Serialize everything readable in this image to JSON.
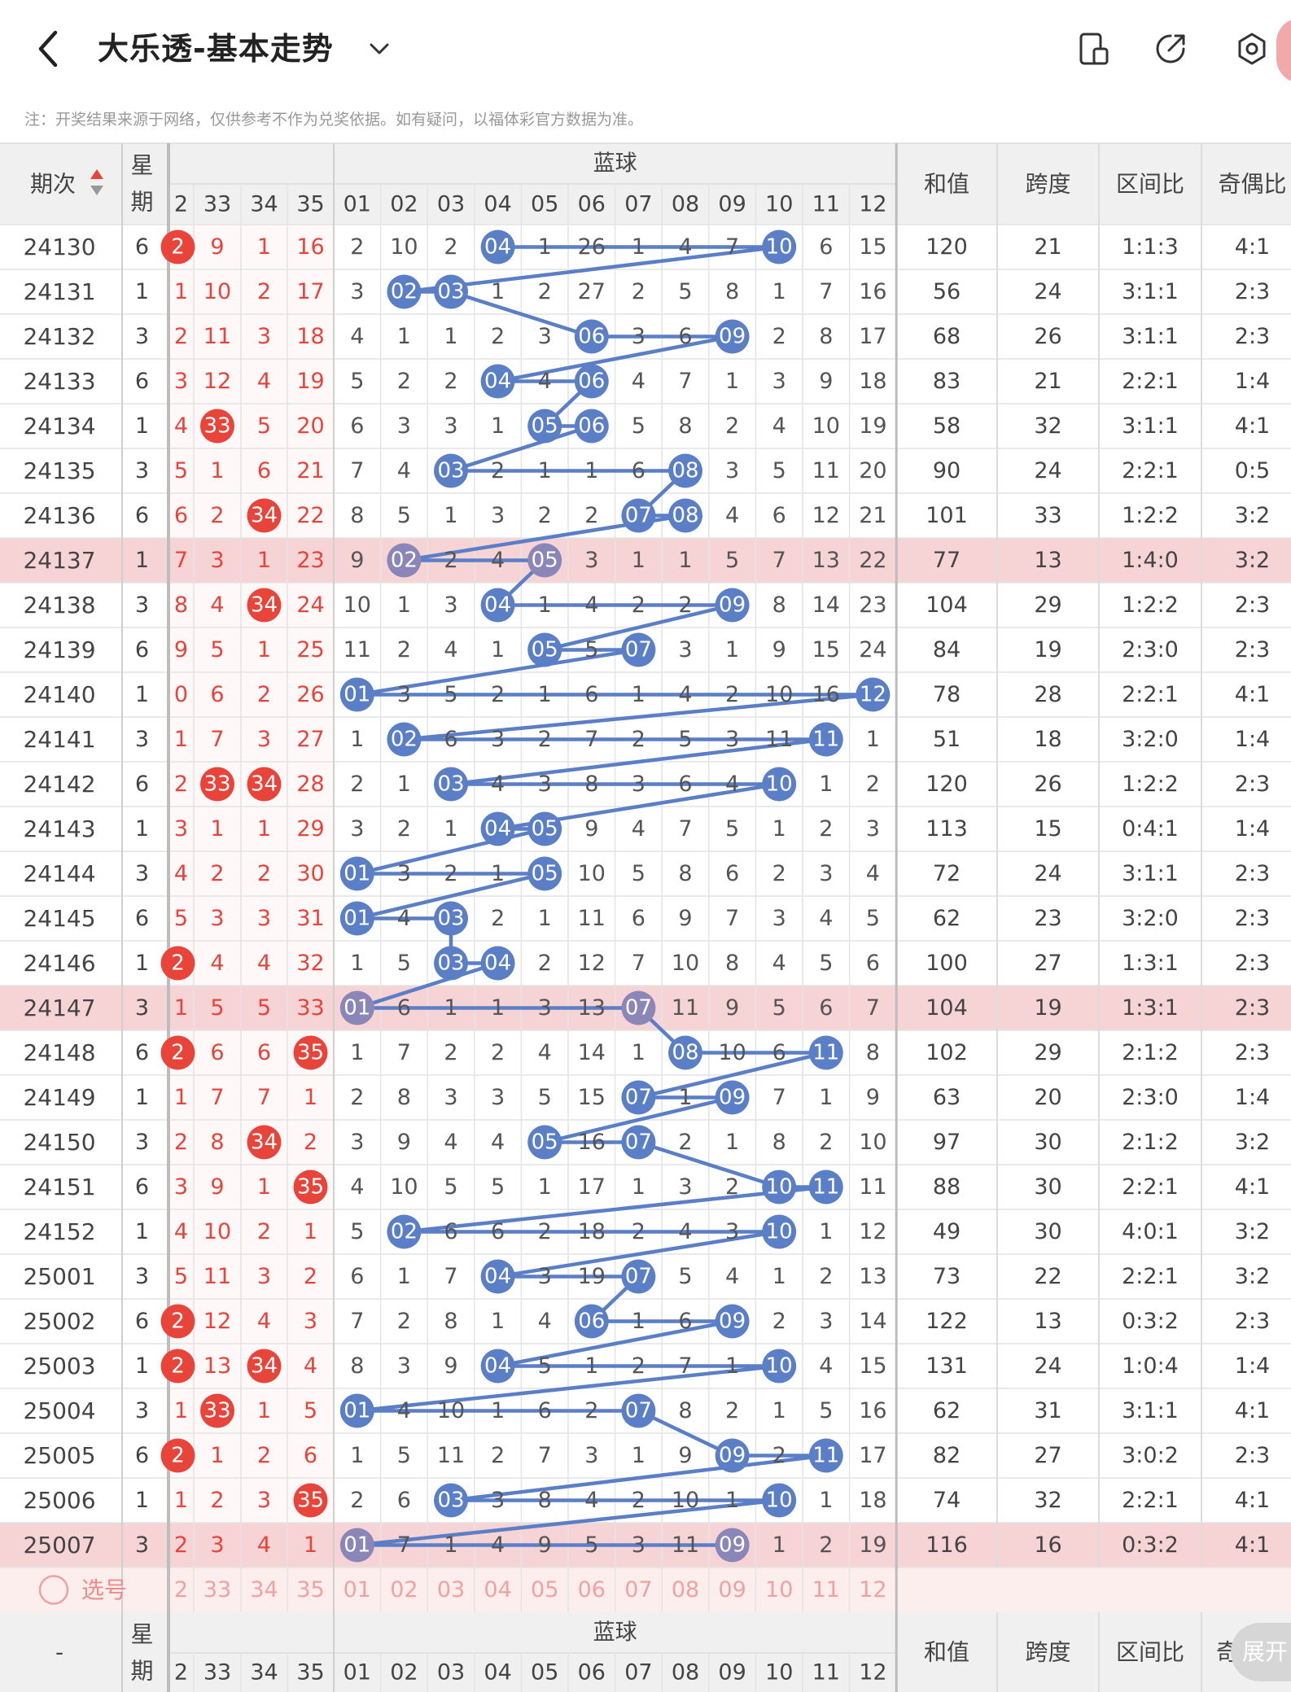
{
  "header": {
    "title": "大乐透-基本走势",
    "notice": "注：开奖结果来源于网络，仅供参考不作为兑奖依据。如有疑问，以福体彩官方数据为准。"
  },
  "table": {
    "col_issue": "期次",
    "col_weekday": "星期",
    "red_headers": [
      "2",
      "33",
      "34",
      "35"
    ],
    "blue_group": "蓝球",
    "blue_headers": [
      "01",
      "02",
      "03",
      "04",
      "05",
      "06",
      "07",
      "08",
      "09",
      "10",
      "11",
      "12"
    ],
    "stat_headers": [
      "和值",
      "跨度",
      "区间比",
      "奇偶比"
    ],
    "select_label": "选号",
    "footer_issue": "-",
    "footer_weekday": "星期",
    "footer_stat_last": "奇",
    "expand_label": "展开",
    "colors": {
      "red": "#e8443a",
      "blue": "#5b7fc6",
      "blue_highlight": "#8a86b8",
      "highlight_row": "#f6d4d6",
      "header_bg": "#f0f0f0"
    },
    "rows": [
      {
        "issue": "24130",
        "wd": "6",
        "red": [
          "2",
          "9",
          "1",
          "16"
        ],
        "redHit": [
          0
        ],
        "blue": [
          "2",
          "10",
          "2",
          "04",
          "1",
          "26",
          "1",
          "4",
          "7",
          "10",
          "6",
          "15"
        ],
        "bHit": [
          3,
          9
        ],
        "stats": [
          "120",
          "21",
          "1:1:3",
          "4:1"
        ]
      },
      {
        "issue": "24131",
        "wd": "1",
        "red": [
          "1",
          "10",
          "2",
          "17"
        ],
        "redHit": [],
        "blue": [
          "3",
          "02",
          "03",
          "1",
          "2",
          "27",
          "2",
          "5",
          "8",
          "1",
          "7",
          "16"
        ],
        "bHit": [
          1,
          2
        ],
        "stats": [
          "56",
          "24",
          "3:1:1",
          "2:3"
        ]
      },
      {
        "issue": "24132",
        "wd": "3",
        "red": [
          "2",
          "11",
          "3",
          "18"
        ],
        "redHit": [],
        "blue": [
          "4",
          "1",
          "1",
          "2",
          "3",
          "06",
          "3",
          "6",
          "09",
          "2",
          "8",
          "17"
        ],
        "bHit": [
          5,
          8
        ],
        "stats": [
          "68",
          "26",
          "3:1:1",
          "2:3"
        ]
      },
      {
        "issue": "24133",
        "wd": "6",
        "red": [
          "3",
          "12",
          "4",
          "19"
        ],
        "redHit": [],
        "blue": [
          "5",
          "2",
          "2",
          "04",
          "4",
          "06",
          "4",
          "7",
          "1",
          "3",
          "9",
          "18"
        ],
        "bHit": [
          3,
          5
        ],
        "stats": [
          "83",
          "21",
          "2:2:1",
          "1:4"
        ]
      },
      {
        "issue": "24134",
        "wd": "1",
        "red": [
          "4",
          "33",
          "5",
          "20"
        ],
        "redHit": [
          1
        ],
        "blue": [
          "6",
          "3",
          "3",
          "1",
          "05",
          "06",
          "5",
          "8",
          "2",
          "4",
          "10",
          "19"
        ],
        "bHit": [
          4,
          5
        ],
        "stats": [
          "58",
          "32",
          "3:1:1",
          "4:1"
        ]
      },
      {
        "issue": "24135",
        "wd": "3",
        "red": [
          "5",
          "1",
          "6",
          "21"
        ],
        "redHit": [],
        "blue": [
          "7",
          "4",
          "03",
          "2",
          "1",
          "1",
          "6",
          "08",
          "3",
          "5",
          "11",
          "20"
        ],
        "bHit": [
          2,
          7
        ],
        "stats": [
          "90",
          "24",
          "2:2:1",
          "0:5"
        ]
      },
      {
        "issue": "24136",
        "wd": "6",
        "red": [
          "6",
          "2",
          "34",
          "22"
        ],
        "redHit": [
          2
        ],
        "blue": [
          "8",
          "5",
          "1",
          "3",
          "2",
          "2",
          "07",
          "08",
          "4",
          "6",
          "12",
          "21"
        ],
        "bHit": [
          6,
          7
        ],
        "stats": [
          "101",
          "33",
          "1:2:2",
          "3:2"
        ]
      },
      {
        "issue": "24137",
        "wd": "1",
        "red": [
          "7",
          "3",
          "1",
          "23"
        ],
        "redHit": [],
        "blue": [
          "9",
          "02",
          "2",
          "4",
          "05",
          "3",
          "1",
          "1",
          "5",
          "7",
          "13",
          "22"
        ],
        "bHit": [
          1,
          4
        ],
        "hl": true,
        "stats": [
          "77",
          "13",
          "1:4:0",
          "3:2"
        ]
      },
      {
        "issue": "24138",
        "wd": "3",
        "red": [
          "8",
          "4",
          "34",
          "24"
        ],
        "redHit": [
          2
        ],
        "blue": [
          "10",
          "1",
          "3",
          "04",
          "1",
          "4",
          "2",
          "2",
          "09",
          "8",
          "14",
          "23"
        ],
        "bHit": [
          3,
          8
        ],
        "stats": [
          "104",
          "29",
          "1:2:2",
          "2:3"
        ]
      },
      {
        "issue": "24139",
        "wd": "6",
        "red": [
          "9",
          "5",
          "1",
          "25"
        ],
        "redHit": [],
        "blue": [
          "11",
          "2",
          "4",
          "1",
          "05",
          "5",
          "07",
          "3",
          "1",
          "9",
          "15",
          "24"
        ],
        "bHit": [
          4,
          6
        ],
        "stats": [
          "84",
          "19",
          "2:3:0",
          "2:3"
        ]
      },
      {
        "issue": "24140",
        "wd": "1",
        "red": [
          "0",
          "6",
          "2",
          "26"
        ],
        "redHit": [],
        "blue": [
          "01",
          "3",
          "5",
          "2",
          "1",
          "6",
          "1",
          "4",
          "2",
          "10",
          "16",
          "12"
        ],
        "bHit": [
          0,
          11
        ],
        "stats": [
          "78",
          "28",
          "2:2:1",
          "4:1"
        ]
      },
      {
        "issue": "24141",
        "wd": "3",
        "red": [
          "1",
          "7",
          "3",
          "27"
        ],
        "redHit": [],
        "blue": [
          "1",
          "02",
          "6",
          "3",
          "2",
          "7",
          "2",
          "5",
          "3",
          "11",
          "11",
          "1"
        ],
        "bHit": [
          1,
          10
        ],
        "stats": [
          "51",
          "18",
          "3:2:0",
          "1:4"
        ]
      },
      {
        "issue": "24142",
        "wd": "6",
        "red": [
          "2",
          "33",
          "34",
          "28"
        ],
        "redHit": [
          1,
          2
        ],
        "blue": [
          "2",
          "1",
          "03",
          "4",
          "3",
          "8",
          "3",
          "6",
          "4",
          "10",
          "1",
          "2"
        ],
        "bHit": [
          2,
          9
        ],
        "stats": [
          "120",
          "26",
          "1:2:2",
          "2:3"
        ]
      },
      {
        "issue": "24143",
        "wd": "1",
        "red": [
          "3",
          "1",
          "1",
          "29"
        ],
        "redHit": [],
        "blue": [
          "3",
          "2",
          "1",
          "04",
          "05",
          "9",
          "4",
          "7",
          "5",
          "1",
          "2",
          "3"
        ],
        "bHit": [
          3,
          4
        ],
        "stats": [
          "113",
          "15",
          "0:4:1",
          "1:4"
        ]
      },
      {
        "issue": "24144",
        "wd": "3",
        "red": [
          "4",
          "2",
          "2",
          "30"
        ],
        "redHit": [],
        "blue": [
          "01",
          "3",
          "2",
          "1",
          "05",
          "10",
          "5",
          "8",
          "6",
          "2",
          "3",
          "4"
        ],
        "bHit": [
          0,
          4
        ],
        "stats": [
          "72",
          "24",
          "3:1:1",
          "2:3"
        ]
      },
      {
        "issue": "24145",
        "wd": "6",
        "red": [
          "5",
          "3",
          "3",
          "31"
        ],
        "redHit": [],
        "blue": [
          "01",
          "4",
          "03",
          "2",
          "1",
          "11",
          "6",
          "9",
          "7",
          "3",
          "4",
          "5"
        ],
        "bHit": [
          0,
          2
        ],
        "stats": [
          "62",
          "23",
          "3:2:0",
          "2:3"
        ]
      },
      {
        "issue": "24146",
        "wd": "1",
        "red": [
          "2",
          "4",
          "4",
          "32"
        ],
        "redHit": [
          0
        ],
        "blue": [
          "1",
          "5",
          "03",
          "04",
          "2",
          "12",
          "7",
          "10",
          "8",
          "4",
          "5",
          "6"
        ],
        "bHit": [
          2,
          3
        ],
        "stats": [
          "100",
          "27",
          "1:3:1",
          "2:3"
        ]
      },
      {
        "issue": "24147",
        "wd": "3",
        "red": [
          "1",
          "5",
          "5",
          "33"
        ],
        "redHit": [],
        "blue": [
          "01",
          "6",
          "1",
          "1",
          "3",
          "13",
          "07",
          "11",
          "9",
          "5",
          "6",
          "7"
        ],
        "bHit": [
          0,
          6
        ],
        "hl": true,
        "stats": [
          "104",
          "19",
          "1:3:1",
          "2:3"
        ]
      },
      {
        "issue": "24148",
        "wd": "6",
        "red": [
          "2",
          "6",
          "6",
          "35"
        ],
        "redHit": [
          0,
          3
        ],
        "blue": [
          "1",
          "7",
          "2",
          "2",
          "4",
          "14",
          "1",
          "08",
          "10",
          "6",
          "11",
          "8"
        ],
        "bHit": [
          7,
          10
        ],
        "stats": [
          "102",
          "29",
          "2:1:2",
          "2:3"
        ]
      },
      {
        "issue": "24149",
        "wd": "1",
        "red": [
          "1",
          "7",
          "7",
          "1"
        ],
        "redHit": [],
        "blue": [
          "2",
          "8",
          "3",
          "3",
          "5",
          "15",
          "07",
          "1",
          "09",
          "7",
          "1",
          "9"
        ],
        "bHit": [
          6,
          8
        ],
        "stats": [
          "63",
          "20",
          "2:3:0",
          "1:4"
        ]
      },
      {
        "issue": "24150",
        "wd": "3",
        "red": [
          "2",
          "8",
          "34",
          "2"
        ],
        "redHit": [
          2
        ],
        "blue": [
          "3",
          "9",
          "4",
          "4",
          "05",
          "16",
          "07",
          "2",
          "1",
          "8",
          "2",
          "10"
        ],
        "bHit": [
          4,
          6
        ],
        "stats": [
          "97",
          "30",
          "2:1:2",
          "3:2"
        ]
      },
      {
        "issue": "24151",
        "wd": "6",
        "red": [
          "3",
          "9",
          "1",
          "35"
        ],
        "redHit": [
          3
        ],
        "blue": [
          "4",
          "10",
          "5",
          "5",
          "1",
          "17",
          "1",
          "3",
          "2",
          "10",
          "11",
          "11"
        ],
        "bHit": [
          9,
          10
        ],
        "stats": [
          "88",
          "30",
          "2:2:1",
          "4:1"
        ]
      },
      {
        "issue": "24152",
        "wd": "1",
        "red": [
          "4",
          "10",
          "2",
          "1"
        ],
        "redHit": [],
        "blue": [
          "5",
          "02",
          "6",
          "6",
          "2",
          "18",
          "2",
          "4",
          "3",
          "10",
          "1",
          "12"
        ],
        "bHit": [
          1,
          9
        ],
        "stats": [
          "49",
          "30",
          "4:0:1",
          "3:2"
        ]
      },
      {
        "issue": "25001",
        "wd": "3",
        "red": [
          "5",
          "11",
          "3",
          "2"
        ],
        "redHit": [],
        "blue": [
          "6",
          "1",
          "7",
          "04",
          "3",
          "19",
          "07",
          "5",
          "4",
          "1",
          "2",
          "13"
        ],
        "bHit": [
          3,
          6
        ],
        "stats": [
          "73",
          "22",
          "2:2:1",
          "3:2"
        ]
      },
      {
        "issue": "25002",
        "wd": "6",
        "red": [
          "2",
          "12",
          "4",
          "3"
        ],
        "redHit": [
          0
        ],
        "blue": [
          "7",
          "2",
          "8",
          "1",
          "4",
          "06",
          "1",
          "6",
          "09",
          "2",
          "3",
          "14"
        ],
        "bHit": [
          5,
          8
        ],
        "stats": [
          "122",
          "13",
          "0:3:2",
          "2:3"
        ]
      },
      {
        "issue": "25003",
        "wd": "1",
        "red": [
          "2",
          "13",
          "34",
          "4"
        ],
        "redHit": [
          0,
          2
        ],
        "blue": [
          "8",
          "3",
          "9",
          "04",
          "5",
          "1",
          "2",
          "7",
          "1",
          "10",
          "4",
          "15"
        ],
        "bHit": [
          3,
          9
        ],
        "stats": [
          "131",
          "24",
          "1:0:4",
          "1:4"
        ]
      },
      {
        "issue": "25004",
        "wd": "3",
        "red": [
          "1",
          "33",
          "1",
          "5"
        ],
        "redHit": [
          1
        ],
        "blue": [
          "01",
          "4",
          "10",
          "1",
          "6",
          "2",
          "07",
          "8",
          "2",
          "1",
          "5",
          "16"
        ],
        "bHit": [
          0,
          6
        ],
        "stats": [
          "62",
          "31",
          "3:1:1",
          "4:1"
        ]
      },
      {
        "issue": "25005",
        "wd": "6",
        "red": [
          "2",
          "1",
          "2",
          "6"
        ],
        "redHit": [
          0
        ],
        "blue": [
          "1",
          "5",
          "11",
          "2",
          "7",
          "3",
          "1",
          "9",
          "09",
          "2",
          "11",
          "17"
        ],
        "bHit": [
          8,
          10
        ],
        "stats": [
          "82",
          "27",
          "3:0:2",
          "2:3"
        ]
      },
      {
        "issue": "25006",
        "wd": "1",
        "red": [
          "1",
          "2",
          "3",
          "35"
        ],
        "redHit": [
          3
        ],
        "blue": [
          "2",
          "6",
          "03",
          "3",
          "8",
          "4",
          "2",
          "10",
          "1",
          "10",
          "1",
          "18"
        ],
        "bHit": [
          2,
          9
        ],
        "stats": [
          "74",
          "32",
          "2:2:1",
          "4:1"
        ]
      },
      {
        "issue": "25007",
        "wd": "3",
        "red": [
          "2",
          "3",
          "4",
          "1"
        ],
        "redHit": [],
        "blue": [
          "01",
          "7",
          "1",
          "4",
          "9",
          "5",
          "3",
          "11",
          "09",
          "1",
          "2",
          "19"
        ],
        "bHit": [
          0,
          8
        ],
        "hl": true,
        "stats": [
          "116",
          "16",
          "0:3:2",
          "4:1"
        ]
      }
    ]
  }
}
